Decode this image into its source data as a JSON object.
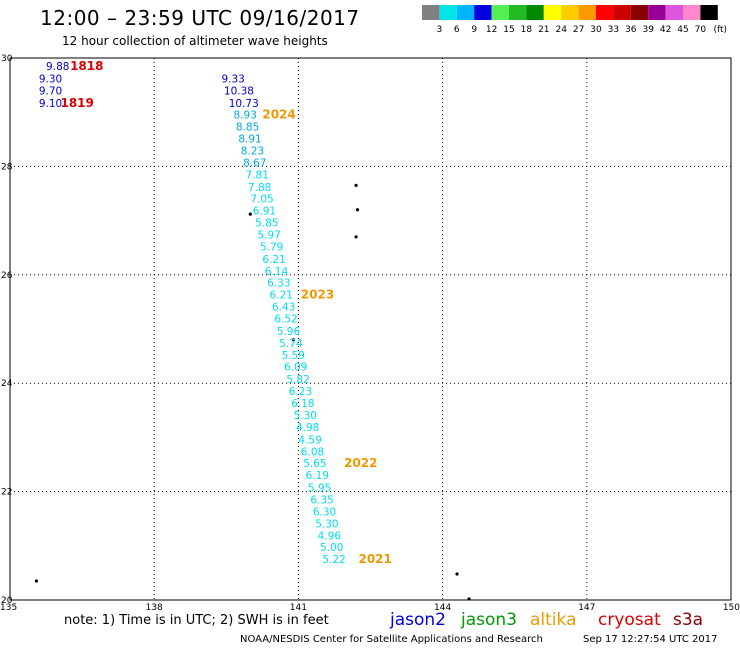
{
  "title": "12:00 – 23:59 UTC 09/16/2017",
  "subtitle": "12 hour collection of altimeter wave heights",
  "colorbar": {
    "unit": "(ft)",
    "colors": [
      "#808080",
      "#00e5e5",
      "#00b5ff",
      "#0000e0",
      "#55ee55",
      "#22bb22",
      "#008800",
      "#ffff00",
      "#ffcc00",
      "#ff9900",
      "#ff0000",
      "#cc0000",
      "#880000",
      "#990099",
      "#dd55dd",
      "#ff88cc",
      "#000000"
    ],
    "labels": [
      "3",
      "6",
      "9",
      "12",
      "15",
      "18",
      "21",
      "24",
      "27",
      "30",
      "33",
      "36",
      "39",
      "42",
      "45",
      "70"
    ]
  },
  "map": {
    "lon_range": [
      135,
      150
    ],
    "lat_range": [
      20,
      30
    ],
    "lon_ticks": [
      "135",
      "138",
      "141",
      "144",
      "147",
      "150"
    ],
    "lat_ticks": [
      "20",
      "22",
      "24",
      "26",
      "28",
      "30"
    ],
    "grid_lon": [
      138,
      141,
      144,
      147
    ],
    "grid_lat": [
      22,
      24,
      26,
      28
    ],
    "grid": "dotted"
  },
  "observations": [
    {
      "lon": 135.75,
      "lat": 29.78,
      "value": "9.88",
      "color": "#0000cc"
    },
    {
      "lon": 135.6,
      "lat": 29.55,
      "value": "9.30",
      "color": "#0000cc"
    },
    {
      "lon": 135.6,
      "lat": 29.33,
      "value": "9.70",
      "color": "#0000cc"
    },
    {
      "lon": 135.6,
      "lat": 29.1,
      "value": "9.10",
      "color": "#0000cc"
    },
    {
      "lon": 139.4,
      "lat": 29.55,
      "value": "9.33",
      "color": "#0000cc"
    },
    {
      "lon": 139.45,
      "lat": 29.33,
      "value": "10.38",
      "color": "#0000cc"
    },
    {
      "lon": 139.55,
      "lat": 29.1,
      "value": "10.73",
      "color": "#0000cc"
    },
    {
      "lon": 139.65,
      "lat": 28.88,
      "value": "8.93",
      "color": "#00aadd"
    },
    {
      "lon": 139.7,
      "lat": 28.66,
      "value": "8.85",
      "color": "#00aadd"
    },
    {
      "lon": 139.75,
      "lat": 28.44,
      "value": "8.91",
      "color": "#00aadd"
    },
    {
      "lon": 139.8,
      "lat": 28.22,
      "value": "8.23",
      "color": "#00aadd"
    },
    {
      "lon": 139.85,
      "lat": 28.0,
      "value": "8.67",
      "color": "#00aadd"
    },
    {
      "lon": 139.9,
      "lat": 27.78,
      "value": "7.81",
      "color": "#00ddee"
    },
    {
      "lon": 139.95,
      "lat": 27.55,
      "value": "7.88",
      "color": "#00ddee"
    },
    {
      "lon": 140.0,
      "lat": 27.33,
      "value": "7.05",
      "color": "#00ddee"
    },
    {
      "lon": 140.05,
      "lat": 27.11,
      "value": "6.91",
      "color": "#00ddee"
    },
    {
      "lon": 140.1,
      "lat": 26.89,
      "value": "5.85",
      "color": "#00ddee"
    },
    {
      "lon": 140.15,
      "lat": 26.67,
      "value": "5.97",
      "color": "#00ddee"
    },
    {
      "lon": 140.2,
      "lat": 26.45,
      "value": "5.79",
      "color": "#00ddee"
    },
    {
      "lon": 140.25,
      "lat": 26.22,
      "value": "6.21",
      "color": "#00ddee"
    },
    {
      "lon": 140.3,
      "lat": 26.0,
      "value": "6.14",
      "color": "#00ddee"
    },
    {
      "lon": 140.35,
      "lat": 25.78,
      "value": "6.33",
      "color": "#00ddee"
    },
    {
      "lon": 140.4,
      "lat": 25.56,
      "value": "6.21",
      "color": "#00ddee"
    },
    {
      "lon": 140.45,
      "lat": 25.34,
      "value": "6.43",
      "color": "#00ddee"
    },
    {
      "lon": 140.5,
      "lat": 25.12,
      "value": "6.52",
      "color": "#00ddee"
    },
    {
      "lon": 140.55,
      "lat": 24.89,
      "value": "5.96",
      "color": "#00ddee"
    },
    {
      "lon": 140.6,
      "lat": 24.67,
      "value": "5.74",
      "color": "#00ddee"
    },
    {
      "lon": 140.65,
      "lat": 24.45,
      "value": "5.59",
      "color": "#00ddee"
    },
    {
      "lon": 140.7,
      "lat": 24.23,
      "value": "6.09",
      "color": "#00ddee"
    },
    {
      "lon": 140.75,
      "lat": 24.0,
      "value": "5.82",
      "color": "#00ddee"
    },
    {
      "lon": 140.8,
      "lat": 23.78,
      "value": "6.23",
      "color": "#00ddee"
    },
    {
      "lon": 140.85,
      "lat": 23.56,
      "value": "6.18",
      "color": "#00ddee"
    },
    {
      "lon": 140.9,
      "lat": 23.34,
      "value": "5.30",
      "color": "#00ddee"
    },
    {
      "lon": 140.95,
      "lat": 23.12,
      "value": "4.98",
      "color": "#00ddee"
    },
    {
      "lon": 141.0,
      "lat": 22.89,
      "value": "4.59",
      "color": "#00ddee"
    },
    {
      "lon": 141.05,
      "lat": 22.67,
      "value": "6.08",
      "color": "#00ddee"
    },
    {
      "lon": 141.1,
      "lat": 22.45,
      "value": "5.65",
      "color": "#00ddee"
    },
    {
      "lon": 141.15,
      "lat": 22.23,
      "value": "6.19",
      "color": "#00ddee"
    },
    {
      "lon": 141.2,
      "lat": 22.0,
      "value": "5.95",
      "color": "#00ddee"
    },
    {
      "lon": 141.25,
      "lat": 21.78,
      "value": "6.35",
      "color": "#00ddee"
    },
    {
      "lon": 141.3,
      "lat": 21.56,
      "value": "6.30",
      "color": "#00ddee"
    },
    {
      "lon": 141.35,
      "lat": 21.34,
      "value": "5.30",
      "color": "#00ddee"
    },
    {
      "lon": 141.4,
      "lat": 21.12,
      "value": "4.96",
      "color": "#00ddee"
    },
    {
      "lon": 141.45,
      "lat": 20.9,
      "value": "5.00",
      "color": "#00ddee"
    },
    {
      "lon": 141.5,
      "lat": 20.68,
      "value": "5.22",
      "color": "#00ddee"
    }
  ],
  "pass_labels": [
    {
      "lon": 136.25,
      "lat": 29.78,
      "text": "1818",
      "color": "#dd0000"
    },
    {
      "lon": 136.05,
      "lat": 29.1,
      "text": "1819",
      "color": "#dd0000"
    },
    {
      "lon": 140.25,
      "lat": 28.88,
      "text": "2024",
      "color": "#ee9900"
    },
    {
      "lon": 141.05,
      "lat": 25.56,
      "text": "2023",
      "color": "#ee9900"
    },
    {
      "lon": 141.95,
      "lat": 22.45,
      "text": "2022",
      "color": "#ee9900"
    },
    {
      "lon": 142.25,
      "lat": 20.68,
      "text": "2021",
      "color": "#ee9900"
    }
  ],
  "islands": [
    {
      "lon": 135.55,
      "lat": 20.35
    },
    {
      "lon": 140.0,
      "lat": 27.12
    },
    {
      "lon": 140.9,
      "lat": 24.8
    },
    {
      "lon": 142.2,
      "lat": 27.65
    },
    {
      "lon": 142.23,
      "lat": 27.2
    },
    {
      "lon": 142.2,
      "lat": 26.7
    },
    {
      "lon": 144.3,
      "lat": 20.48
    },
    {
      "lon": 144.55,
      "lat": 20.02
    }
  ],
  "footer": {
    "note": "note:  1) Time is in UTC;  2) SWH is in feet",
    "satellites": [
      {
        "name": "jason2",
        "color": "#0000dd"
      },
      {
        "name": "jason3",
        "color": "#009900"
      },
      {
        "name": "altika",
        "color": "#ee9900"
      },
      {
        "name": "cryosat",
        "color": "#dd0000"
      },
      {
        "name": "s3a",
        "color": "#880000"
      }
    ],
    "credit": "NOAA/NESDIS Center for Satellite Applications and Research",
    "timestamp": "Sep 17 12:27:54 UTC 2017"
  }
}
